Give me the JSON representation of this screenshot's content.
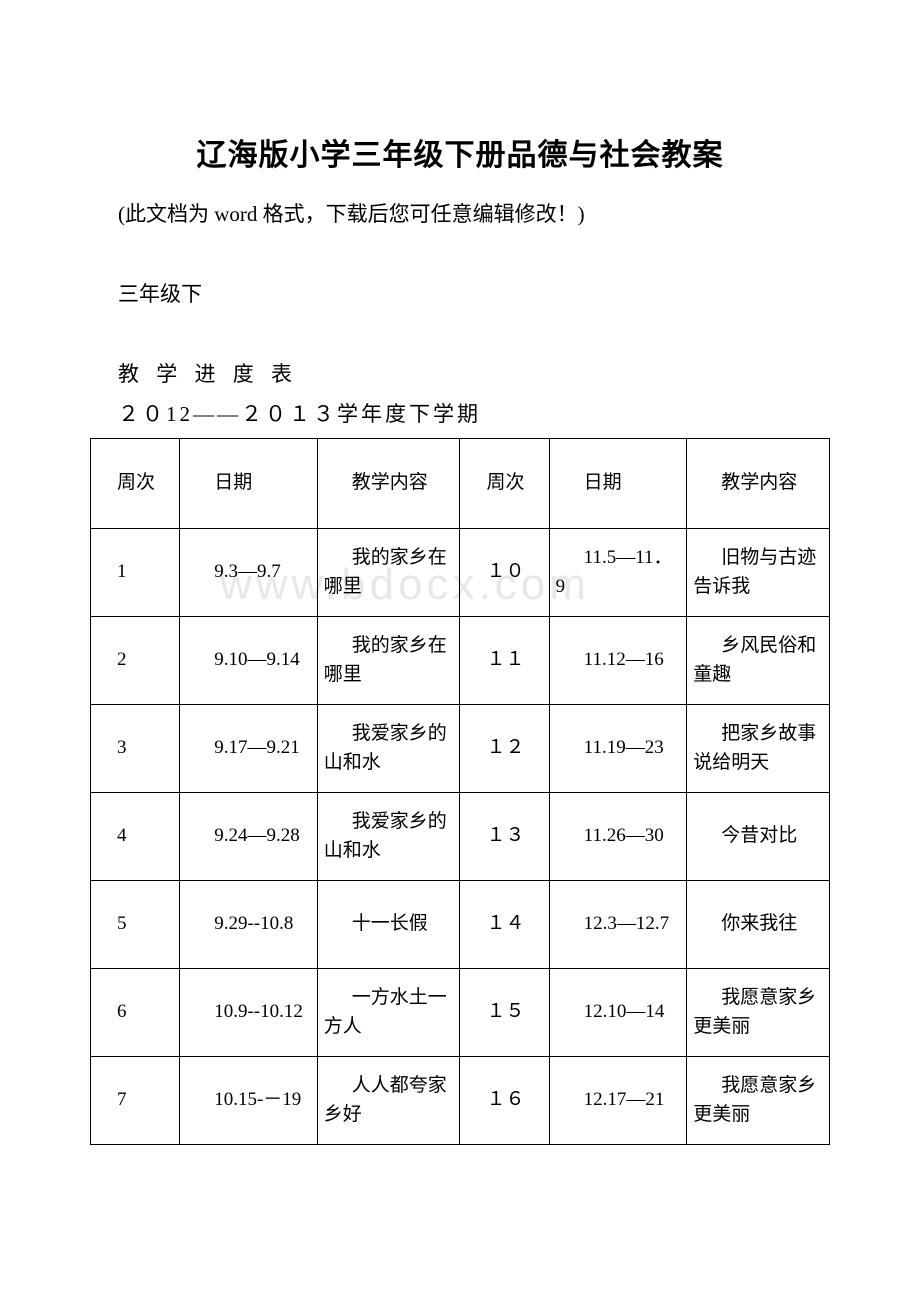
{
  "document": {
    "title": "辽海版小学三年级下册品德与社会教案",
    "subtitle": "(此文档为 word 格式，下载后您可任意编辑修改！)",
    "grade_label": "三年级下",
    "section_header": "教 学 进 度 表",
    "year_label": "２０12——２０１３学年度下学期",
    "watermark": "www.bdocx.com"
  },
  "table": {
    "headers": {
      "week": "周次",
      "date": "日期",
      "content": "教学内容"
    },
    "rows": [
      {
        "week1": "1",
        "date1": "9.3—9.7",
        "content1": "我的家乡在哪里",
        "week2": "１０",
        "date2": "11.5—11．9",
        "content2": "旧物与古迹告诉我"
      },
      {
        "week1": "2",
        "date1": "9.10—9.14",
        "content1": "我的家乡在哪里",
        "week2": "１１",
        "date2": "11.12—16",
        "content2": "乡风民俗和童趣"
      },
      {
        "week1": "3",
        "date1": "9.17—9.21",
        "content1": "我爱家乡的山和水",
        "week2": "１２",
        "date2": "11.19—23",
        "content2": "把家乡故事说给明天"
      },
      {
        "week1": "4",
        "date1": "9.24—9.28",
        "content1": "我爱家乡的山和水",
        "week2": "１３",
        "date2": "11.26—30",
        "content2": "今昔对比"
      },
      {
        "week1": "5",
        "date1": "9.29--10.8",
        "content1": "十一长假",
        "week2": "１４",
        "date2": "12.3—12.7",
        "content2": "你来我往"
      },
      {
        "week1": "6",
        "date1": "10.9--10.12",
        "content1": "一方水土一方人",
        "week2": "１５",
        "date2": "12.10—14",
        "content2": "我愿意家乡更美丽"
      },
      {
        "week1": "7",
        "date1": "10.15-－19",
        "content1": "人人都夸家乡好",
        "week2": "１６",
        "date2": "12.17—21",
        "content2": "我愿意家乡更美丽"
      }
    ]
  },
  "styles": {
    "background_color": "#ffffff",
    "text_color": "#000000",
    "border_color": "#000000",
    "watermark_color": "#e8e8e8",
    "title_fontsize": 30,
    "body_fontsize": 21,
    "table_fontsize": 19
  }
}
